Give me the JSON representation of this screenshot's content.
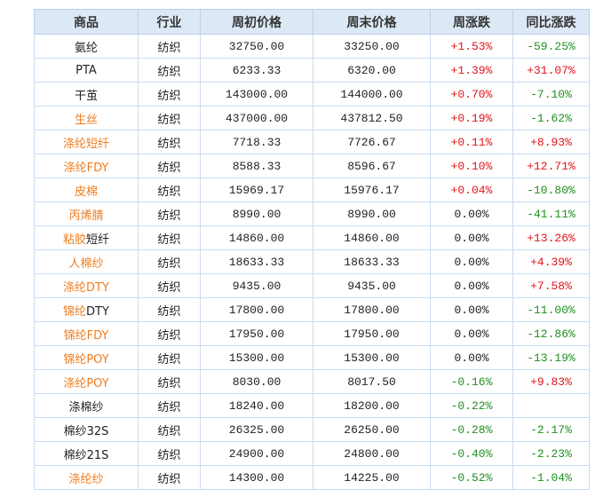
{
  "table": {
    "header": [
      "商品",
      "行业",
      "周初价格",
      "周末价格",
      "周涨跌",
      "同比涨跌"
    ],
    "rows": [
      {
        "product": [
          {
            "text": "氨纶"
          }
        ],
        "industry": "纺织",
        "open": "32750.00",
        "close": "33250.00",
        "week": "+1.53%",
        "yoy": "-59.25%"
      },
      {
        "product": [
          {
            "text": "PTA"
          }
        ],
        "industry": "纺织",
        "open": "6233.33",
        "close": "6320.00",
        "week": "+1.39%",
        "yoy": "+31.07%"
      },
      {
        "product": [
          {
            "text": "干茧"
          }
        ],
        "industry": "纺织",
        "open": "143000.00",
        "close": "144000.00",
        "week": "+0.70%",
        "yoy": "-7.10%"
      },
      {
        "product": [
          {
            "text": "生丝",
            "link": true
          }
        ],
        "industry": "纺织",
        "open": "437000.00",
        "close": "437812.50",
        "week": "+0.19%",
        "yoy": "-1.62%"
      },
      {
        "product": [
          {
            "text": "涤纶短纤",
            "link": true
          }
        ],
        "industry": "纺织",
        "open": "7718.33",
        "close": "7726.67",
        "week": "+0.11%",
        "yoy": "+8.93%"
      },
      {
        "product": [
          {
            "text": "涤纶FDY",
            "link": true
          }
        ],
        "industry": "纺织",
        "open": "8588.33",
        "close": "8596.67",
        "week": "+0.10%",
        "yoy": "+12.71%"
      },
      {
        "product": [
          {
            "text": "皮棉",
            "link": true
          }
        ],
        "industry": "纺织",
        "open": "15969.17",
        "close": "15976.17",
        "week": "+0.04%",
        "yoy": "-10.80%"
      },
      {
        "product": [
          {
            "text": "丙烯腈",
            "link": true
          }
        ],
        "industry": "纺织",
        "open": "8990.00",
        "close": "8990.00",
        "week": "0.00%",
        "yoy": "-41.11%"
      },
      {
        "product": [
          {
            "text": "粘胶",
            "link": true
          },
          {
            "text": "短纤"
          }
        ],
        "industry": "纺织",
        "open": "14860.00",
        "close": "14860.00",
        "week": "0.00%",
        "yoy": "+13.26%"
      },
      {
        "product": [
          {
            "text": "人棉纱",
            "link": true
          }
        ],
        "industry": "纺织",
        "open": "18633.33",
        "close": "18633.33",
        "week": "0.00%",
        "yoy": "+4.39%"
      },
      {
        "product": [
          {
            "text": "涤纶DTY",
            "link": true
          }
        ],
        "industry": "纺织",
        "open": "9435.00",
        "close": "9435.00",
        "week": "0.00%",
        "yoy": "+7.58%"
      },
      {
        "product": [
          {
            "text": "锦纶",
            "link": true
          },
          {
            "text": "DTY"
          }
        ],
        "industry": "纺织",
        "open": "17800.00",
        "close": "17800.00",
        "week": "0.00%",
        "yoy": "-11.00%"
      },
      {
        "product": [
          {
            "text": "锦纶FDY",
            "link": true
          }
        ],
        "industry": "纺织",
        "open": "17950.00",
        "close": "17950.00",
        "week": "0.00%",
        "yoy": "-12.86%"
      },
      {
        "product": [
          {
            "text": "锦纶POY",
            "link": true
          }
        ],
        "industry": "纺织",
        "open": "15300.00",
        "close": "15300.00",
        "week": "0.00%",
        "yoy": "-13.19%"
      },
      {
        "product": [
          {
            "text": "涤纶POY",
            "link": true
          }
        ],
        "industry": "纺织",
        "open": "8030.00",
        "close": "8017.50",
        "week": "-0.16%",
        "yoy": "+9.83%"
      },
      {
        "product": [
          {
            "text": "涤棉纱"
          }
        ],
        "industry": "纺织",
        "open": "18240.00",
        "close": "18200.00",
        "week": "-0.22%",
        "yoy": null
      },
      {
        "product": [
          {
            "text": "棉纱32S"
          }
        ],
        "industry": "纺织",
        "open": "26325.00",
        "close": "26250.00",
        "week": "-0.28%",
        "yoy": "-2.17%"
      },
      {
        "product": [
          {
            "text": "棉纱21S"
          }
        ],
        "industry": "纺织",
        "open": "24900.00",
        "close": "24800.00",
        "week": "-0.40%",
        "yoy": "-2.23%"
      },
      {
        "product": [
          {
            "text": "涤纶纱",
            "link": true
          }
        ],
        "industry": "纺织",
        "open": "14300.00",
        "close": "14225.00",
        "week": "-0.52%",
        "yoy": "-1.04%"
      }
    ]
  }
}
